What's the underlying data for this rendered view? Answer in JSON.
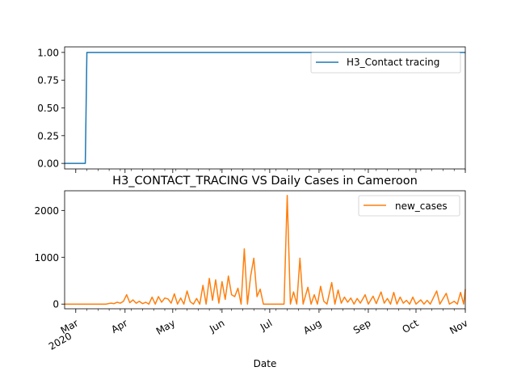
{
  "chart_data": [
    {
      "type": "line",
      "title": "",
      "xlabel": "",
      "ylabel": "",
      "x_range": [
        "2020-02-23",
        "2020-11-01"
      ],
      "ylim": [
        -0.05,
        1.05
      ],
      "yticks": [
        0.0,
        0.25,
        0.5,
        0.75,
        1.0
      ],
      "ytick_labels": [
        "0.00",
        "0.25",
        "0.50",
        "0.75",
        "1.00"
      ],
      "legend": "top-right",
      "series": [
        {
          "name": "H3_Contact tracing",
          "color": "#1f77b4",
          "points": [
            [
              "2020-02-23",
              0
            ],
            [
              "2020-03-07",
              0
            ],
            [
              "2020-03-08",
              1
            ],
            [
              "2020-11-01",
              1
            ]
          ]
        }
      ]
    },
    {
      "type": "line",
      "title": "H3_CONTACT_TRACING VS Daily Cases in Cameroon",
      "xlabel": "Date",
      "ylabel": "",
      "x_range": [
        "2020-02-23",
        "2020-11-01"
      ],
      "ylim": [
        -100,
        2420
      ],
      "yticks": [
        0,
        1000,
        2000
      ],
      "ytick_labels": [
        "0",
        "1000",
        "2000"
      ],
      "xticks": [
        {
          "date": "2020-03-01",
          "label": "Mar",
          "year": "2020"
        },
        {
          "date": "2020-04-01",
          "label": "Apr"
        },
        {
          "date": "2020-05-01",
          "label": "May"
        },
        {
          "date": "2020-06-01",
          "label": "Jun"
        },
        {
          "date": "2020-07-01",
          "label": "Jul"
        },
        {
          "date": "2020-08-01",
          "label": "Aug"
        },
        {
          "date": "2020-09-01",
          "label": "Sep"
        },
        {
          "date": "2020-10-01",
          "label": "Oct"
        },
        {
          "date": "2020-11-01",
          "label": "Nov"
        }
      ],
      "legend": "top-right",
      "series": [
        {
          "name": "new_cases",
          "color": "#ff7f0e",
          "points": [
            [
              "2020-02-23",
              0
            ],
            [
              "2020-03-20",
              0
            ],
            [
              "2020-03-23",
              20
            ],
            [
              "2020-03-25",
              10
            ],
            [
              "2020-03-27",
              40
            ],
            [
              "2020-03-29",
              20
            ],
            [
              "2020-03-31",
              60
            ],
            [
              "2020-04-02",
              200
            ],
            [
              "2020-04-04",
              30
            ],
            [
              "2020-04-06",
              90
            ],
            [
              "2020-04-08",
              20
            ],
            [
              "2020-04-10",
              60
            ],
            [
              "2020-04-12",
              10
            ],
            [
              "2020-04-14",
              40
            ],
            [
              "2020-04-16",
              0
            ],
            [
              "2020-04-18",
              150
            ],
            [
              "2020-04-20",
              0
            ],
            [
              "2020-04-22",
              160
            ],
            [
              "2020-04-24",
              40
            ],
            [
              "2020-04-26",
              130
            ],
            [
              "2020-04-28",
              110
            ],
            [
              "2020-04-30",
              20
            ],
            [
              "2020-05-02",
              220
            ],
            [
              "2020-05-04",
              0
            ],
            [
              "2020-05-06",
              130
            ],
            [
              "2020-05-08",
              0
            ],
            [
              "2020-05-10",
              280
            ],
            [
              "2020-05-12",
              50
            ],
            [
              "2020-05-14",
              0
            ],
            [
              "2020-05-16",
              120
            ],
            [
              "2020-05-18",
              0
            ],
            [
              "2020-05-20",
              400
            ],
            [
              "2020-05-22",
              0
            ],
            [
              "2020-05-24",
              550
            ],
            [
              "2020-05-26",
              80
            ],
            [
              "2020-05-28",
              520
            ],
            [
              "2020-05-30",
              20
            ],
            [
              "2020-06-01",
              480
            ],
            [
              "2020-06-03",
              100
            ],
            [
              "2020-06-05",
              600
            ],
            [
              "2020-06-07",
              200
            ],
            [
              "2020-06-09",
              160
            ],
            [
              "2020-06-11",
              340
            ],
            [
              "2020-06-13",
              0
            ],
            [
              "2020-06-15",
              1180
            ],
            [
              "2020-06-17",
              0
            ],
            [
              "2020-06-19",
              600
            ],
            [
              "2020-06-21",
              980
            ],
            [
              "2020-06-23",
              160
            ],
            [
              "2020-06-25",
              320
            ],
            [
              "2020-06-27",
              0
            ],
            [
              "2020-07-10",
              0
            ],
            [
              "2020-07-12",
              2320
            ],
            [
              "2020-07-14",
              0
            ],
            [
              "2020-07-16",
              260
            ],
            [
              "2020-07-18",
              0
            ],
            [
              "2020-07-20",
              980
            ],
            [
              "2020-07-22",
              0
            ],
            [
              "2020-07-25",
              360
            ],
            [
              "2020-07-27",
              0
            ],
            [
              "2020-07-29",
              200
            ],
            [
              "2020-07-31",
              0
            ],
            [
              "2020-08-02",
              380
            ],
            [
              "2020-08-04",
              60
            ],
            [
              "2020-08-06",
              0
            ],
            [
              "2020-08-09",
              460
            ],
            [
              "2020-08-11",
              0
            ],
            [
              "2020-08-13",
              300
            ],
            [
              "2020-08-15",
              20
            ],
            [
              "2020-08-17",
              150
            ],
            [
              "2020-08-19",
              40
            ],
            [
              "2020-08-21",
              130
            ],
            [
              "2020-08-23",
              0
            ],
            [
              "2020-08-25",
              120
            ],
            [
              "2020-08-27",
              20
            ],
            [
              "2020-08-30",
              200
            ],
            [
              "2020-09-01",
              0
            ],
            [
              "2020-09-04",
              170
            ],
            [
              "2020-09-06",
              10
            ],
            [
              "2020-09-09",
              260
            ],
            [
              "2020-09-11",
              20
            ],
            [
              "2020-09-13",
              120
            ],
            [
              "2020-09-15",
              0
            ],
            [
              "2020-09-17",
              250
            ],
            [
              "2020-09-19",
              0
            ],
            [
              "2020-09-21",
              150
            ],
            [
              "2020-09-23",
              20
            ],
            [
              "2020-09-25",
              80
            ],
            [
              "2020-09-27",
              0
            ],
            [
              "2020-09-29",
              150
            ],
            [
              "2020-10-01",
              0
            ],
            [
              "2020-10-04",
              90
            ],
            [
              "2020-10-06",
              0
            ],
            [
              "2020-10-08",
              80
            ],
            [
              "2020-10-10",
              0
            ],
            [
              "2020-10-14",
              280
            ],
            [
              "2020-10-16",
              0
            ],
            [
              "2020-10-20",
              230
            ],
            [
              "2020-10-22",
              0
            ],
            [
              "2020-10-25",
              60
            ],
            [
              "2020-10-27",
              0
            ],
            [
              "2020-10-29",
              250
            ],
            [
              "2020-10-31",
              0
            ],
            [
              "2020-11-01",
              320
            ]
          ]
        }
      ]
    }
  ]
}
